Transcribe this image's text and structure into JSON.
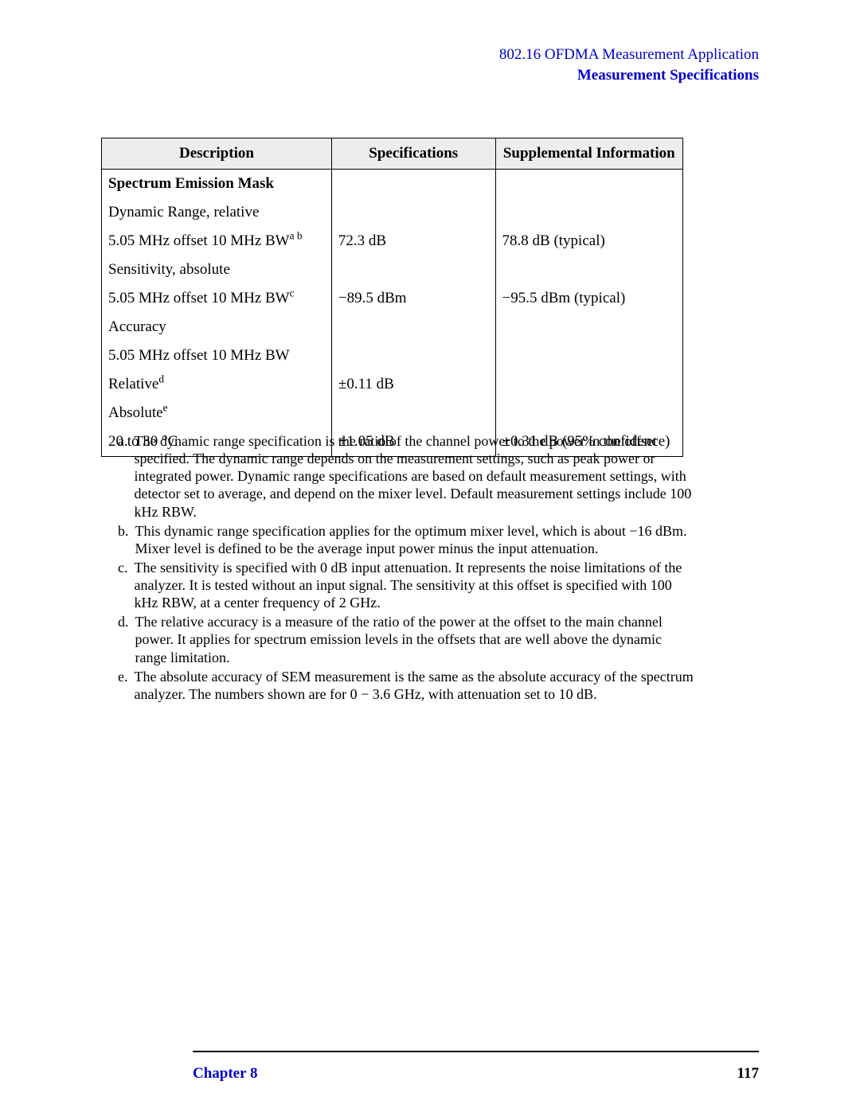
{
  "header": {
    "line1": "802.16 OFDMA Measurement Application",
    "line2": "Measurement Specifications"
  },
  "table": {
    "columns": {
      "description": "Description",
      "specifications": "Specifications",
      "supplemental": "Supplemental Information"
    },
    "rows": {
      "r0": {
        "desc": "Spectrum Emission Mask",
        "spec": "",
        "supp": ""
      },
      "r1": {
        "desc": "Dynamic Range, relative",
        "spec": "",
        "supp": ""
      },
      "r2": {
        "desc_pre": "5.05 MHz offset 10 MHz BW",
        "sup": "a b",
        "spec": "72.3 dB",
        "supp": "78.8 dB (typical)"
      },
      "r3": {
        "desc": "Sensitivity, absolute",
        "spec": "",
        "supp": ""
      },
      "r4": {
        "desc_pre": "5.05 MHz offset 10 MHz BW",
        "sup": "c",
        "spec": "−89.5 dBm",
        "supp": "−95.5 dBm (typical)"
      },
      "r5": {
        "desc": "Accuracy",
        "spec": "",
        "supp": ""
      },
      "r6": {
        "desc": "5.05 MHz offset 10 MHz BW",
        "spec": "",
        "supp": ""
      },
      "r7": {
        "desc_pre": "Relative",
        "sup": "d",
        "spec": "±0.11 dB",
        "supp": ""
      },
      "r8": {
        "desc_pre": "Absolute",
        "sup": "e",
        "spec": "",
        "supp": ""
      },
      "r9": {
        "desc": "20 to 30 °C",
        "spec": "±1.05 dB",
        "supp": "±0.31 dB (95% confidence)"
      }
    }
  },
  "footnotes": {
    "a": {
      "letter": "a.",
      "text": "The dynamic range specification is the ratio of the channel power to the power in the offset specified. The dynamic range depends on the measurement settings, such as peak power or integrated power. Dynamic range specifications are based on default measurement settings, with detector set to average, and depend on the mixer level. Default measurement settings include 100 kHz RBW."
    },
    "b": {
      "letter": "b.",
      "text": "This dynamic range specification applies for the optimum mixer level, which is about −16 dBm. Mixer level is defined to be the average input power minus the input attenuation."
    },
    "c": {
      "letter": "c.",
      "text": "The sensitivity is specified with 0 dB input attenuation. It represents the noise limitations of the analyzer. It is tested without an input signal. The sensitivity at this offset is specified with 100 kHz RBW, at a center frequency of 2 GHz."
    },
    "d": {
      "letter": "d.",
      "text": "The relative accuracy is a measure of the ratio of the power at the offset to the main channel power. It applies for spectrum emission levels in the offsets that are well above the dynamic range limitation."
    },
    "e": {
      "letter": "e.",
      "text": "The absolute accuracy of SEM measurement is the same as the absolute accuracy of the spectrum analyzer. The numbers shown are for 0 − 3.6 GHz, with attenuation set to 10 dB."
    }
  },
  "footer": {
    "chapter": "Chapter 8",
    "page": "117"
  }
}
